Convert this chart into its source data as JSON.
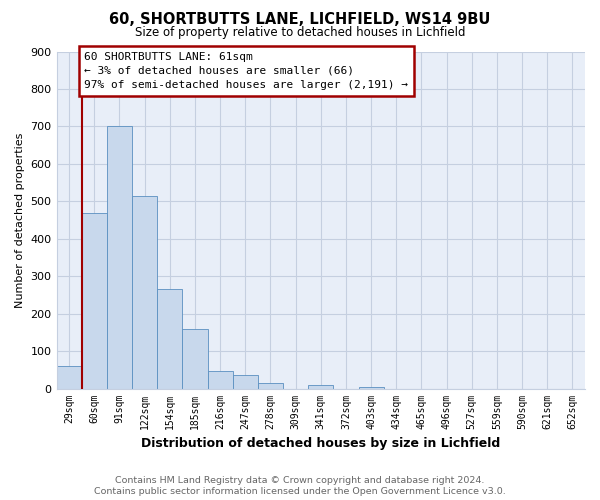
{
  "title": "60, SHORTBUTTS LANE, LICHFIELD, WS14 9BU",
  "subtitle": "Size of property relative to detached houses in Lichfield",
  "xlabel": "Distribution of detached houses by size in Lichfield",
  "ylabel": "Number of detached properties",
  "bin_labels": [
    "29sqm",
    "60sqm",
    "91sqm",
    "122sqm",
    "154sqm",
    "185sqm",
    "216sqm",
    "247sqm",
    "278sqm",
    "309sqm",
    "341sqm",
    "372sqm",
    "403sqm",
    "434sqm",
    "465sqm",
    "496sqm",
    "527sqm",
    "559sqm",
    "590sqm",
    "621sqm",
    "652sqm"
  ],
  "bar_values": [
    60,
    470,
    700,
    515,
    265,
    160,
    48,
    35,
    14,
    0,
    10,
    0,
    5,
    0,
    0,
    0,
    0,
    0,
    0,
    0,
    0
  ],
  "bar_color": "#c8d8ec",
  "bar_edge_color": "#5a8fc0",
  "highlight_color": "#a00000",
  "ylim": [
    0,
    900
  ],
  "yticks": [
    0,
    100,
    200,
    300,
    400,
    500,
    600,
    700,
    800,
    900
  ],
  "annotation_title": "60 SHORTBUTTS LANE: 61sqm",
  "annotation_line1": "← 3% of detached houses are smaller (66)",
  "annotation_line2": "97% of semi-detached houses are larger (2,191) →",
  "footer_line1": "Contains HM Land Registry data © Crown copyright and database right 2024.",
  "footer_line2": "Contains public sector information licensed under the Open Government Licence v3.0.",
  "bg_color": "#ffffff",
  "plot_bg_color": "#e8eef8",
  "grid_color": "#c5cfe0"
}
